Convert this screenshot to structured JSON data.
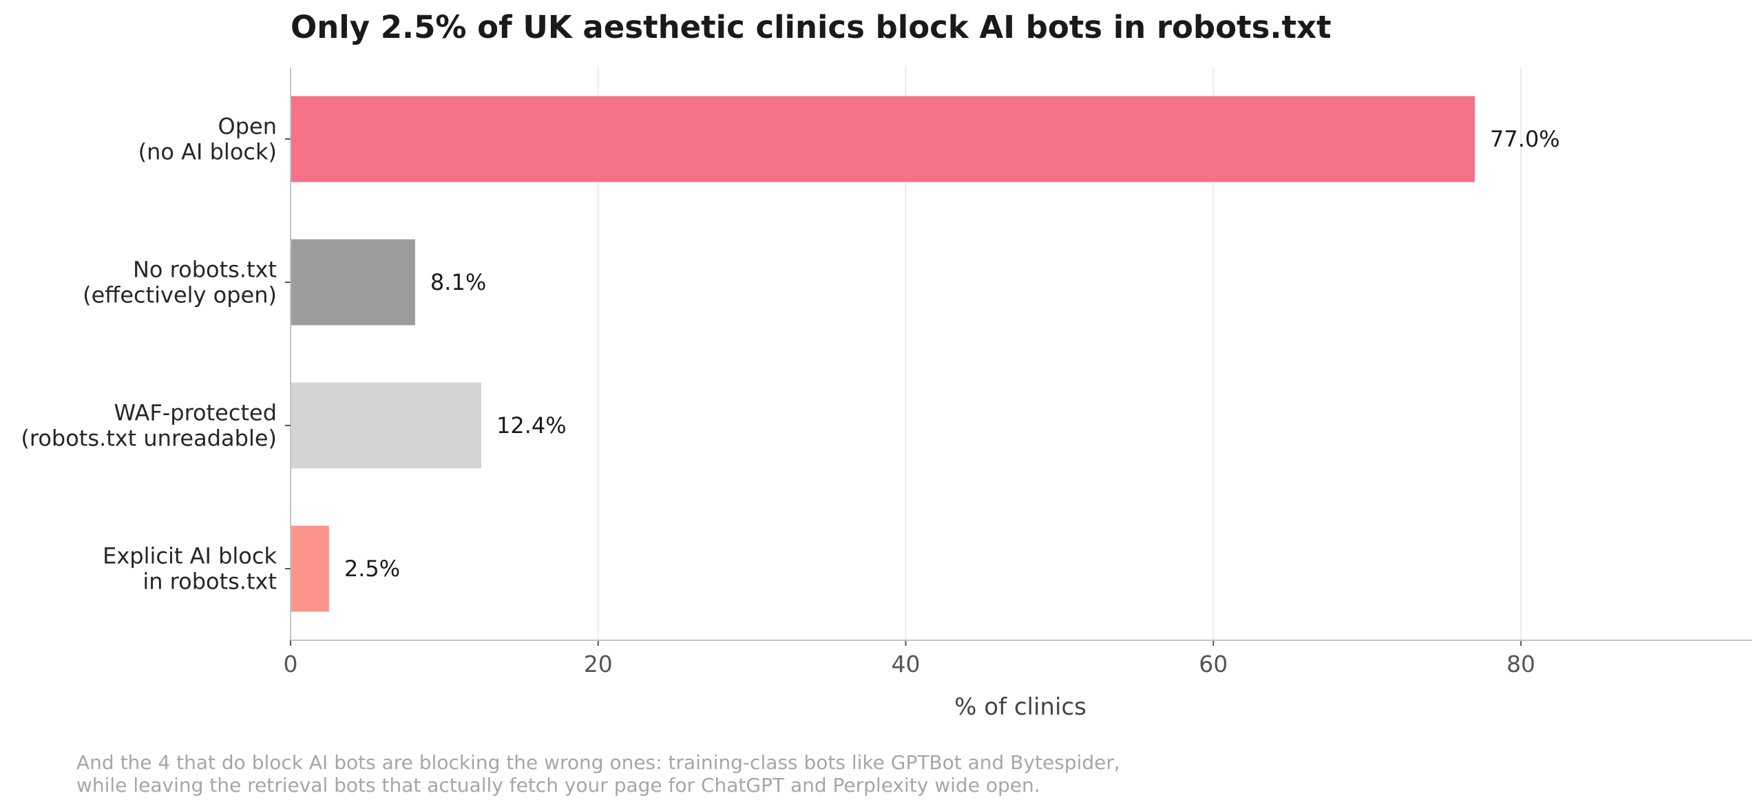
{
  "chart_data": {
    "type": "bar",
    "orientation": "horizontal",
    "title": "Only 2.5% of UK aesthetic clinics block AI bots in robots.txt",
    "xlabel": "% of clinics",
    "ylabel": "",
    "xlim": [
      0,
      95
    ],
    "xticks": [
      0,
      20,
      40,
      60,
      80
    ],
    "grid": "vertical",
    "categories": [
      [
        "Open",
        "(no AI block)"
      ],
      [
        "No robots.txt",
        "(effectively open)"
      ],
      [
        "WAF-protected",
        "(robots.txt unreadable)"
      ],
      [
        "Explicit AI block",
        "in robots.txt"
      ]
    ],
    "values": [
      77.0,
      8.1,
      12.4,
      2.5
    ],
    "value_labels": [
      "77.0%",
      "8.1%",
      "12.4%",
      "2.5%"
    ],
    "colors": [
      "#f57187",
      "#9c9c9c",
      "#d4d4d4",
      "#fb958b"
    ]
  },
  "footnote": [
    "And the 4 that do block AI bots are blocking the wrong ones: training-class bots like GPTBot and Bytespider,",
    "while leaving the retrieval bots that actually fetch your page for ChatGPT and Perplexity wide open."
  ]
}
